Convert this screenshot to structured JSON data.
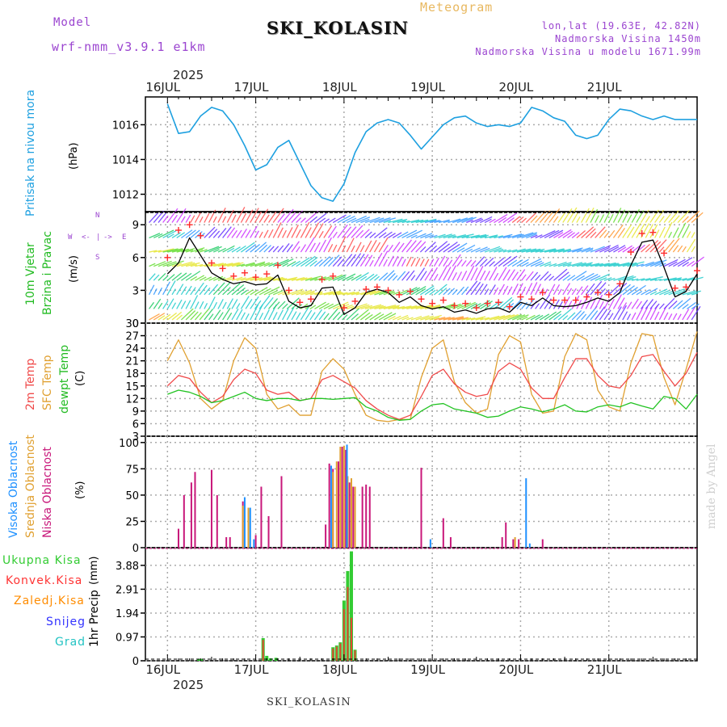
{
  "header": {
    "model_label": "Model",
    "model_name": "wrf-nmm_v3.9.1  e1km",
    "station": "SKI_KOLASIN",
    "meteogram": "Meteogram",
    "lonlat": "lon,lat (19.63E, 42.82N)",
    "altitude": "Nadmorska Visina 1450m",
    "model_altitude": "Nadmorska Visina u modelu 1671.99m",
    "footer_station": "SKI_KOLASIN",
    "credit": "made by Angel",
    "year": "2025"
  },
  "colors": {
    "pressure": "#1ea0e0",
    "t2m": "#f04a4a",
    "sfc": "#e0a030",
    "dewpt": "#22c322",
    "wind_speed": "#000000",
    "gust": "#ff2a2a",
    "high_cloud": "#1e90ff",
    "mid_cloud": "#e0a030",
    "low_cloud": "#c8177a",
    "total_precip": "#33cc33",
    "conv_precip": "#ff3333",
    "frozen_precip": "#ff8c00",
    "snow": "#3333ff",
    "hail": "#22c3c3"
  },
  "chart_data": [
    {
      "type": "line",
      "title": "",
      "ylabel_outer": "Pritisak na nivou mora",
      "ylabel": "(hPa)",
      "ylim": [
        1011,
        1017.6
      ],
      "yticks": [
        1012,
        1014,
        1016
      ],
      "x_day_labels": [
        "16JUL",
        "17JUL",
        "18JUL",
        "19JUL",
        "20JUL",
        "21JUL"
      ],
      "x_hours": [
        0,
        3,
        6,
        9,
        12,
        15,
        18,
        21,
        24,
        27,
        30,
        33,
        36,
        39,
        42,
        45,
        48,
        51,
        54,
        57,
        60,
        63,
        66,
        69,
        72,
        75,
        78,
        81,
        84,
        87,
        90,
        93,
        96,
        99,
        102,
        105,
        108,
        111,
        114,
        117,
        120,
        123,
        126,
        129,
        132,
        135,
        138,
        141,
        144
      ],
      "series": [
        {
          "values": [
            1017.2,
            1015.5,
            1015.6,
            1016.5,
            1017.0,
            1016.8,
            1016.0,
            1014.8,
            1013.4,
            1013.7,
            1014.7,
            1015.1,
            1013.8,
            1012.5,
            1011.8,
            1011.6,
            1012.6,
            1014.4,
            1015.6,
            1016.1,
            1016.3,
            1016.1,
            1015.4,
            1014.6,
            1015.3,
            1016.0,
            1016.4,
            1016.5,
            1016.1,
            1015.9,
            1016.0,
            1015.9,
            1016.1,
            1017.0,
            1016.8,
            1016.4,
            1016.2,
            1015.4,
            1015.2,
            1015.4,
            1016.3,
            1016.9,
            1016.8,
            1016.5,
            1016.3,
            1016.5,
            1016.3,
            1016.3,
            1016.3
          ]
        }
      ]
    },
    {
      "type": "line",
      "title": "",
      "ylabel_outer": [
        "10m Vjetar",
        "Brzina i Pravac"
      ],
      "ylabel": "(m/s)",
      "compass_labels": [
        "W",
        "<-",
        "|",
        "->",
        "E",
        "N",
        "S"
      ],
      "ylim": [
        0,
        10.2
      ],
      "yticks": [
        0,
        3,
        6,
        9
      ],
      "x_hours": [
        0,
        3,
        6,
        9,
        12,
        15,
        18,
        21,
        24,
        27,
        30,
        33,
        36,
        39,
        42,
        45,
        48,
        51,
        54,
        57,
        60,
        63,
        66,
        69,
        72,
        75,
        78,
        81,
        84,
        87,
        90,
        93,
        96,
        99,
        102,
        105,
        108,
        111,
        114,
        117,
        120,
        123,
        126,
        129,
        132,
        135,
        138,
        141,
        144
      ],
      "series": [
        {
          "name": "speed",
          "values": [
            4.5,
            5.5,
            7.8,
            6.2,
            4.6,
            4.0,
            3.6,
            3.8,
            3.5,
            3.6,
            4.4,
            2.0,
            1.4,
            1.6,
            3.2,
            3.3,
            0.8,
            1.4,
            2.8,
            3.1,
            2.8,
            1.9,
            2.4,
            1.6,
            1.3,
            1.5,
            1.0,
            1.2,
            0.9,
            1.3,
            1.4,
            1.0,
            1.9,
            1.6,
            2.3,
            1.6,
            1.5,
            1.6,
            1.9,
            2.3,
            2.0,
            2.8,
            5.3,
            7.4,
            7.6,
            5.1,
            2.4,
            2.9,
            4.5
          ]
        },
        {
          "name": "gust",
          "values": [
            6.0,
            8.5,
            9.0,
            8.0,
            5.5,
            5.0,
            4.3,
            4.6,
            4.2,
            4.5,
            5.3,
            3.0,
            1.9,
            2.2,
            4.0,
            4.3,
            1.4,
            2.0,
            3.1,
            3.3,
            3.0,
            2.6,
            2.9,
            2.2,
            1.8,
            2.1,
            1.6,
            1.8,
            1.4,
            1.8,
            1.9,
            1.5,
            2.4,
            2.2,
            2.8,
            2.1,
            2.1,
            2.1,
            2.4,
            2.8,
            2.6,
            3.6,
            6.5,
            8.2,
            8.3,
            6.4,
            3.2,
            3.3,
            4.8
          ]
        }
      ]
    },
    {
      "type": "line",
      "title": "",
      "ylabel_outer": [
        "2m Temp",
        "SFC Temp",
        "dewpt Temp"
      ],
      "ylabel": "(C)",
      "ylim": [
        3,
        30
      ],
      "yticks": [
        3,
        6,
        9,
        12,
        15,
        18,
        21,
        24,
        27,
        30
      ],
      "x_hours": [
        0,
        3,
        6,
        9,
        12,
        15,
        18,
        21,
        24,
        27,
        30,
        33,
        36,
        39,
        42,
        45,
        48,
        51,
        54,
        57,
        60,
        63,
        66,
        69,
        72,
        75,
        78,
        81,
        84,
        87,
        90,
        93,
        96,
        99,
        102,
        105,
        108,
        111,
        114,
        117,
        120,
        123,
        126,
        129,
        132,
        135,
        138,
        141,
        144
      ],
      "series": [
        {
          "name": "2m",
          "values": [
            15.0,
            17.5,
            16.8,
            13.5,
            11.0,
            12.5,
            16.5,
            19.0,
            18.0,
            14.0,
            13.0,
            13.5,
            11.5,
            12.0,
            16.5,
            17.5,
            16.0,
            14.5,
            11.5,
            9.5,
            8.0,
            7.0,
            8.0,
            12.5,
            17.5,
            19.0,
            15.5,
            13.5,
            12.5,
            13.0,
            18.5,
            20.5,
            19.0,
            14.5,
            12.0,
            12.0,
            17.0,
            21.5,
            21.5,
            17.5,
            15.0,
            14.5,
            17.5,
            22.0,
            22.5,
            18.5,
            15.0,
            18.0,
            23.0
          ]
        },
        {
          "name": "SFC",
          "values": [
            21.0,
            26.0,
            20.5,
            12.0,
            9.5,
            11.5,
            21.0,
            26.5,
            24.0,
            13.0,
            9.5,
            10.5,
            8.0,
            8.0,
            18.5,
            21.5,
            19.0,
            13.0,
            8.0,
            6.8,
            6.5,
            7.0,
            7.0,
            17.0,
            24.0,
            26.0,
            16.0,
            11.0,
            8.5,
            9.5,
            22.5,
            27.0,
            25.5,
            13.0,
            8.5,
            9.0,
            22.0,
            27.5,
            26.0,
            14.0,
            10.0,
            9.0,
            20.5,
            27.5,
            27.0,
            17.0,
            10.5,
            19.0,
            28.0
          ]
        },
        {
          "name": "dewpt",
          "values": [
            13.0,
            14.0,
            13.5,
            12.5,
            11.0,
            11.5,
            12.5,
            13.5,
            12.0,
            11.5,
            12.0,
            12.0,
            11.5,
            12.0,
            12.0,
            11.8,
            12.0,
            12.2,
            10.0,
            9.0,
            7.5,
            6.8,
            7.0,
            9.0,
            10.5,
            10.8,
            9.5,
            9.0,
            8.5,
            7.5,
            7.8,
            9.0,
            10.0,
            9.5,
            8.8,
            9.5,
            10.5,
            9.0,
            8.8,
            10.0,
            10.5,
            10.0,
            11.0,
            10.2,
            9.5,
            12.5,
            12.0,
            9.5,
            13.0
          ]
        }
      ]
    },
    {
      "type": "bar",
      "title": "",
      "ylabel_outer": [
        "Visoka Oblacnost",
        "Srednja Oblacnost",
        "Niska Oblacnost"
      ],
      "ylabel": "(%)",
      "ylim": [
        0,
        106
      ],
      "yticks": [
        0,
        25,
        50,
        75,
        100
      ],
      "series": [
        {
          "name": "low",
          "points": [
            [
              3,
              18
            ],
            [
              4.5,
              50
            ],
            [
              6.5,
              62
            ],
            [
              7.5,
              72
            ],
            [
              12,
              74
            ],
            [
              13.5,
              50
            ],
            [
              16,
              10
            ],
            [
              17,
              10
            ],
            [
              20.5,
              44
            ],
            [
              22,
              35
            ],
            [
              24,
              12
            ],
            [
              25.5,
              58
            ],
            [
              27.5,
              30
            ],
            [
              31,
              68
            ],
            [
              43,
              22
            ],
            [
              44,
              80
            ],
            [
              45,
              75
            ],
            [
              46.5,
              82
            ],
            [
              47.5,
              96
            ],
            [
              48.5,
              93
            ],
            [
              49.5,
              62
            ],
            [
              50.5,
              58
            ],
            [
              53,
              58
            ],
            [
              54,
              60
            ],
            [
              55,
              58
            ],
            [
              69,
              76
            ],
            [
              75,
              28
            ],
            [
              77,
              10
            ],
            [
              91,
              10
            ],
            [
              92,
              24
            ],
            [
              94,
              8
            ],
            [
              95.5,
              8
            ],
            [
              102,
              8
            ]
          ]
        },
        {
          "name": "mid",
          "points": [
            [
              20.5,
              40
            ],
            [
              22,
              38
            ],
            [
              45,
              72
            ],
            [
              46,
              82
            ],
            [
              47,
              96
            ],
            [
              48,
              97
            ],
            [
              49,
              68
            ],
            [
              50,
              66
            ],
            [
              51,
              58
            ],
            [
              94.5,
              10
            ]
          ]
        },
        {
          "name": "high",
          "points": [
            [
              21,
              48
            ],
            [
              22.5,
              38
            ],
            [
              23.5,
              8
            ],
            [
              44.5,
              78
            ],
            [
              48.8,
              98
            ],
            [
              71.5,
              8
            ],
            [
              97.5,
              66
            ],
            [
              98.5,
              4
            ]
          ]
        }
      ]
    },
    {
      "type": "bar",
      "title": "",
      "ylabel_outer": "1hr Precip",
      "ylabel": "(mm)",
      "legend_labels": [
        "Ukupna Kisa",
        "Konvek.Kisa",
        "Zaledj.Kisa",
        "Snijeg",
        "Grad"
      ],
      "ylim": [
        0,
        4.6
      ],
      "yticks": [
        0,
        0.97,
        1.94,
        2.91,
        3.88
      ],
      "series": [
        {
          "name": "total",
          "points": [
            [
              8.5,
              0.05
            ],
            [
              9.2,
              0.08
            ],
            [
              26,
              0.92
            ],
            [
              27,
              0.2
            ],
            [
              28,
              0.1
            ],
            [
              29.5,
              0.12
            ],
            [
              45,
              0.55
            ],
            [
              46,
              0.62
            ],
            [
              47,
              0.75
            ],
            [
              48,
              2.45
            ],
            [
              49,
              3.65
            ],
            [
              50,
              4.45
            ],
            [
              51,
              0.45
            ]
          ]
        },
        {
          "name": "conv",
          "points": [
            [
              26,
              0.85
            ],
            [
              45,
              0.5
            ],
            [
              46,
              0.58
            ],
            [
              47,
              0.7
            ],
            [
              48,
              2.1
            ],
            [
              49,
              3.0
            ],
            [
              50,
              1.75
            ],
            [
              51,
              0.42
            ]
          ]
        }
      ]
    }
  ]
}
